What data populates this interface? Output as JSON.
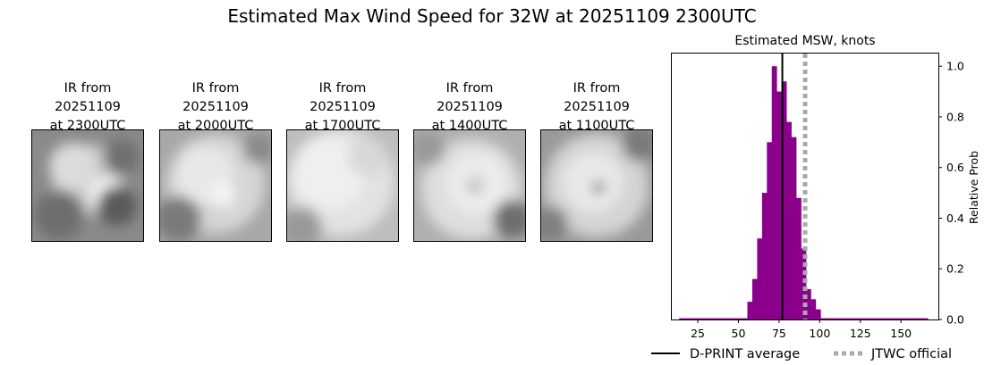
{
  "figure": {
    "title": "Estimated Max Wind Speed for 32W at 20251109 2300UTC"
  },
  "ir_panels": [
    {
      "caption": "IR from\n20251109\nat 2300UTC",
      "icon": "satellite-ir-image"
    },
    {
      "caption": "IR from\n20251109\nat 2000UTC",
      "icon": "satellite-ir-image"
    },
    {
      "caption": "IR from\n20251109\nat 1700UTC",
      "icon": "satellite-ir-image"
    },
    {
      "caption": "IR from\n20251109\nat 1400UTC",
      "icon": "satellite-ir-image"
    },
    {
      "caption": "IR from\n20251109\nat 1100UTC",
      "icon": "satellite-ir-image"
    }
  ],
  "chart_data": {
    "type": "bar",
    "title": "Estimated MSW, knots",
    "xlabel": "",
    "ylabel": "Relative Prob",
    "xlim": [
      9,
      173
    ],
    "ylim": [
      0,
      1.05
    ],
    "xticks": [
      "25",
      "50",
      "75",
      "100",
      "125",
      "150"
    ],
    "yticks": [
      "0.0",
      "0.2",
      "0.4",
      "0.6",
      "0.8",
      "1.0"
    ],
    "bar_color": "#8b008b",
    "bin_width": 3,
    "bins": [
      {
        "x": 15,
        "y": 0.005
      },
      {
        "x": 18,
        "y": 0.005
      },
      {
        "x": 21,
        "y": 0.005
      },
      {
        "x": 24,
        "y": 0.005
      },
      {
        "x": 27,
        "y": 0.005
      },
      {
        "x": 30,
        "y": 0.005
      },
      {
        "x": 33,
        "y": 0.005
      },
      {
        "x": 36,
        "y": 0.005
      },
      {
        "x": 39,
        "y": 0.005
      },
      {
        "x": 42,
        "y": 0.005
      },
      {
        "x": 45,
        "y": 0.005
      },
      {
        "x": 48,
        "y": 0.005
      },
      {
        "x": 51,
        "y": 0.005
      },
      {
        "x": 54,
        "y": 0.005
      },
      {
        "x": 57,
        "y": 0.07
      },
      {
        "x": 60,
        "y": 0.16
      },
      {
        "x": 63,
        "y": 0.32
      },
      {
        "x": 66,
        "y": 0.5
      },
      {
        "x": 69,
        "y": 0.7
      },
      {
        "x": 72,
        "y": 1.0
      },
      {
        "x": 75,
        "y": 0.9
      },
      {
        "x": 78,
        "y": 0.94
      },
      {
        "x": 81,
        "y": 0.78
      },
      {
        "x": 84,
        "y": 0.72
      },
      {
        "x": 87,
        "y": 0.48
      },
      {
        "x": 90,
        "y": 0.28
      },
      {
        "x": 93,
        "y": 0.12
      },
      {
        "x": 96,
        "y": 0.08
      },
      {
        "x": 99,
        "y": 0.04
      },
      {
        "x": 102,
        "y": 0.005
      },
      {
        "x": 105,
        "y": 0.005
      },
      {
        "x": 108,
        "y": 0.005
      },
      {
        "x": 111,
        "y": 0.005
      },
      {
        "x": 114,
        "y": 0.005
      },
      {
        "x": 117,
        "y": 0.005
      },
      {
        "x": 120,
        "y": 0.005
      },
      {
        "x": 123,
        "y": 0.005
      },
      {
        "x": 126,
        "y": 0.005
      },
      {
        "x": 129,
        "y": 0.005
      },
      {
        "x": 132,
        "y": 0.005
      },
      {
        "x": 135,
        "y": 0.005
      },
      {
        "x": 138,
        "y": 0.005
      },
      {
        "x": 141,
        "y": 0.005
      },
      {
        "x": 144,
        "y": 0.005
      },
      {
        "x": 147,
        "y": 0.005
      },
      {
        "x": 150,
        "y": 0.005
      },
      {
        "x": 153,
        "y": 0.005
      },
      {
        "x": 156,
        "y": 0.005
      },
      {
        "x": 159,
        "y": 0.005
      },
      {
        "x": 162,
        "y": 0.005
      },
      {
        "x": 165,
        "y": 0.005
      }
    ],
    "series": [
      {
        "name": "D-PRINT average",
        "value": 77,
        "color": "#000000",
        "style": "solid"
      },
      {
        "name": "JTWC official",
        "value": 91,
        "color": "#aaaaaa",
        "style": "dotted"
      }
    ],
    "legend_placement": "bottom-right",
    "grid": false
  }
}
